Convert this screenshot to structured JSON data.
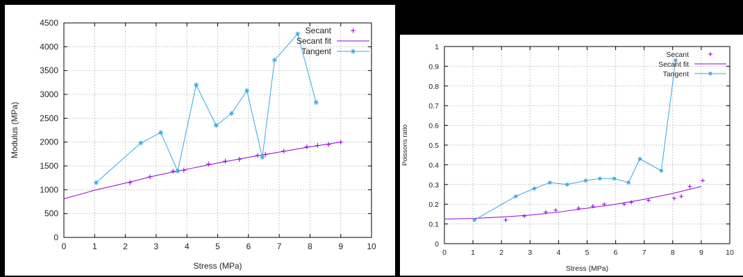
{
  "colors": {
    "secant": "#9400d3",
    "tangent": "#35a7e0",
    "grid": "#c8c8c8",
    "frame": "#000000",
    "background": "#000000"
  },
  "chart_data": [
    {
      "type": "line",
      "xlabel": "Stress (MPa)",
      "ylabel": "Modulus (MPa)",
      "xlim": [
        0,
        10
      ],
      "ylim": [
        0,
        4500
      ],
      "xticks": [
        0,
        1,
        2,
        3,
        4,
        5,
        6,
        7,
        8,
        9,
        10
      ],
      "yticks": [
        0,
        500,
        1000,
        1500,
        2000,
        2500,
        3000,
        3500,
        4000,
        4500
      ],
      "grid": true,
      "legend_position": "top-right",
      "series": [
        {
          "name": "Secant",
          "style": "points-plus",
          "color": "#9400d3",
          "x": [
            2.15,
            2.8,
            3.55,
            3.9,
            4.7,
            5.25,
            5.7,
            6.3,
            6.55,
            7.15,
            7.9,
            8.25,
            8.6,
            9.0
          ],
          "y": [
            1150,
            1270,
            1390,
            1410,
            1540,
            1600,
            1640,
            1720,
            1740,
            1810,
            1900,
            1930,
            1950,
            2000
          ]
        },
        {
          "name": "Secant fit",
          "style": "line",
          "color": "#9400d3",
          "x": [
            0,
            1,
            2,
            3,
            4,
            5,
            6,
            7,
            8,
            9
          ],
          "y": [
            810,
            990,
            1140,
            1300,
            1430,
            1560,
            1680,
            1790,
            1900,
            2000
          ]
        },
        {
          "name": "Tangent",
          "style": "linespoints-star",
          "color": "#35a7e0",
          "x": [
            1.05,
            2.5,
            3.15,
            3.7,
            4.3,
            4.95,
            5.45,
            5.95,
            6.45,
            6.85,
            7.6,
            8.2
          ],
          "y": [
            1150,
            1980,
            2200,
            1390,
            3200,
            2350,
            2600,
            3080,
            1680,
            3720,
            4270,
            2830
          ]
        }
      ]
    },
    {
      "type": "line",
      "xlabel": "Stress (MPa)",
      "ylabel": "Poissons ratio",
      "xlim": [
        0,
        10
      ],
      "ylim": [
        0,
        1
      ],
      "xticks": [
        0,
        1,
        2,
        3,
        4,
        5,
        6,
        7,
        8,
        9,
        10
      ],
      "yticks": [
        0,
        0.1,
        0.2,
        0.3,
        0.4,
        0.5,
        0.6,
        0.7,
        0.8,
        0.9,
        1
      ],
      "grid": true,
      "legend_position": "top-right",
      "series": [
        {
          "name": "Secant",
          "style": "points-plus",
          "color": "#9400d3",
          "x": [
            2.15,
            2.8,
            3.55,
            3.9,
            4.7,
            5.2,
            5.6,
            6.3,
            6.55,
            7.15,
            8.05,
            8.3,
            8.6,
            9.05
          ],
          "y": [
            0.12,
            0.14,
            0.16,
            0.17,
            0.18,
            0.19,
            0.2,
            0.2,
            0.21,
            0.22,
            0.23,
            0.24,
            0.29,
            0.32
          ]
        },
        {
          "name": "Secant fit",
          "style": "line",
          "color": "#9400d3",
          "x": [
            0,
            1,
            2,
            3,
            4,
            5,
            6,
            7,
            8,
            9
          ],
          "y": [
            0.125,
            0.128,
            0.135,
            0.145,
            0.16,
            0.18,
            0.2,
            0.225,
            0.255,
            0.29
          ]
        },
        {
          "name": "Tangent",
          "style": "linespoints-star",
          "color": "#35a7e0",
          "x": [
            1.05,
            2.5,
            3.15,
            3.7,
            4.3,
            4.95,
            5.45,
            5.95,
            6.45,
            6.85,
            7.6,
            8.1
          ],
          "y": [
            0.12,
            0.24,
            0.28,
            0.31,
            0.3,
            0.32,
            0.33,
            0.33,
            0.31,
            0.43,
            0.37,
            0.93
          ]
        }
      ]
    }
  ]
}
